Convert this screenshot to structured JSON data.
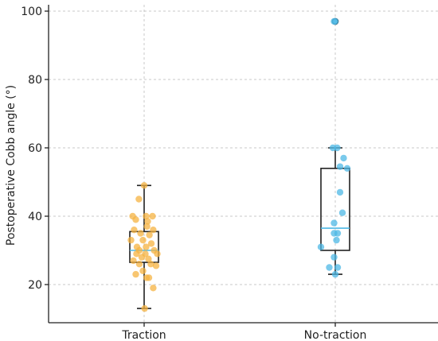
{
  "chart_data": {
    "type": "box",
    "ylabel": "Postoperative Cobb angle (°)",
    "xlabel": "",
    "ylim": [
      8,
      100
    ],
    "yticks": [
      20,
      40,
      60,
      80,
      100
    ],
    "categories": [
      "Traction",
      "No-traction"
    ],
    "grid": true,
    "colors": {
      "axis": "#222222",
      "grid": "#c8c8c8",
      "box": "#222222"
    },
    "series": [
      {
        "category": "Traction",
        "color": "#f5b342",
        "median_color": "#4db8e6",
        "whisker_low": 13,
        "q1": 26.5,
        "median": 30,
        "q3": 35.5,
        "whisker_high": 49,
        "outliers": [],
        "points": [
          {
            "x": 0.0,
            "y": 49
          },
          {
            "x": -0.22,
            "y": 45
          },
          {
            "x": 0.02,
            "y": 13
          },
          {
            "x": -0.48,
            "y": 40
          },
          {
            "x": -0.35,
            "y": 39
          },
          {
            "x": 0.08,
            "y": 40
          },
          {
            "x": 0.35,
            "y": 40
          },
          {
            "x": 0.15,
            "y": 38.5
          },
          {
            "x": 0.12,
            "y": 37
          },
          {
            "x": -0.42,
            "y": 36
          },
          {
            "x": 0.38,
            "y": 36
          },
          {
            "x": -0.15,
            "y": 35
          },
          {
            "x": 0.22,
            "y": 34.5
          },
          {
            "x": -0.55,
            "y": 33
          },
          {
            "x": -0.05,
            "y": 33
          },
          {
            "x": 0.3,
            "y": 32
          },
          {
            "x": -0.3,
            "y": 31
          },
          {
            "x": 0.08,
            "y": 31
          },
          {
            "x": -0.2,
            "y": 30
          },
          {
            "x": 0.42,
            "y": 30
          },
          {
            "x": -0.32,
            "y": 29
          },
          {
            "x": 0.55,
            "y": 29
          },
          {
            "x": 0.05,
            "y": 29
          },
          {
            "x": -0.1,
            "y": 28
          },
          {
            "x": 0.18,
            "y": 27.5
          },
          {
            "x": -0.45,
            "y": 27
          },
          {
            "x": 0.28,
            "y": 26
          },
          {
            "x": -0.2,
            "y": 26
          },
          {
            "x": 0.5,
            "y": 25.5
          },
          {
            "x": -0.05,
            "y": 24
          },
          {
            "x": -0.35,
            "y": 23
          },
          {
            "x": 0.1,
            "y": 22
          },
          {
            "x": 0.2,
            "y": 22
          },
          {
            "x": 0.38,
            "y": 19
          }
        ]
      },
      {
        "category": "No-traction",
        "color": "#4db8e6",
        "median_color": "#4db8e6",
        "whisker_low": 23,
        "q1": 30,
        "median": 36.5,
        "q3": 54,
        "whisker_high": 60,
        "outliers": [
          97
        ],
        "points": [
          {
            "x": -0.05,
            "y": 97
          },
          {
            "x": 0.0,
            "y": 97
          },
          {
            "x": -0.1,
            "y": 60
          },
          {
            "x": 0.08,
            "y": 60
          },
          {
            "x": 0.35,
            "y": 57
          },
          {
            "x": 0.2,
            "y": 54.5
          },
          {
            "x": 0.5,
            "y": 54
          },
          {
            "x": 0.2,
            "y": 47
          },
          {
            "x": 0.3,
            "y": 41
          },
          {
            "x": -0.05,
            "y": 38
          },
          {
            "x": 0.1,
            "y": 35
          },
          {
            "x": -0.05,
            "y": 35
          },
          {
            "x": 0.05,
            "y": 33
          },
          {
            "x": -0.6,
            "y": 31
          },
          {
            "x": -0.05,
            "y": 28
          },
          {
            "x": -0.25,
            "y": 25
          },
          {
            "x": 0.1,
            "y": 25
          },
          {
            "x": 0.0,
            "y": 23
          }
        ]
      }
    ]
  }
}
